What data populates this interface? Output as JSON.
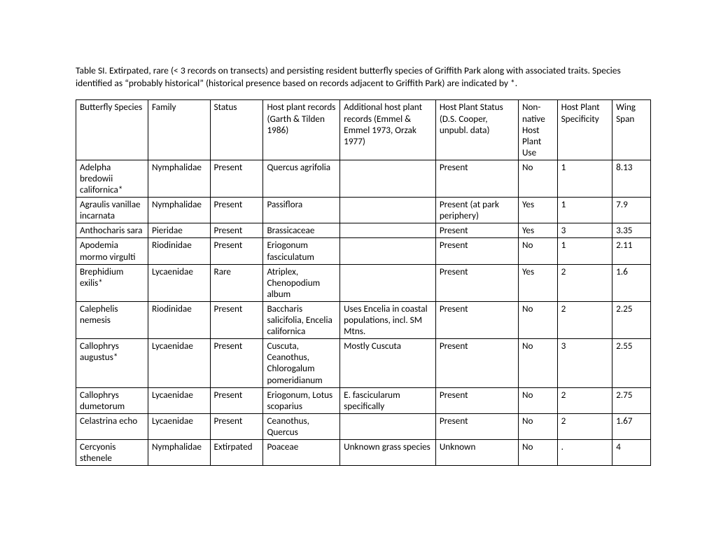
{
  "caption": "Table SI. Extirpated, rare (< 3 records on transects) and persisting resident butterfly species of Griffith Park along with associated traits. Species identified as “probably historical” (historical presence based on records adjacent to Griffith Park) are indicated by *.",
  "columns": [
    "Butterfly Species",
    "Family",
    "Status",
    "Host plant records (Garth & Tilden 1986)",
    "Additional host plant records (Emmel & Emmel 1973, Orzak 1977)",
    "Host Plant Status (D.S. Cooper, unpubl. data)",
    "Non-native Host Plant Use",
    "Host Plant Specificity",
    "Wing Span"
  ],
  "rows": [
    [
      "Adelpha bredowii californica*",
      "Nymphalidae",
      "Present",
      "Quercus agrifolia",
      "",
      "Present",
      "No",
      "1",
      "8.13"
    ],
    [
      "Agraulis vanillae incarnata",
      "Nymphalidae",
      "Present",
      "Passiflora",
      "",
      "Present (at park periphery)",
      "Yes",
      "1",
      "7.9"
    ],
    [
      "Anthocharis sara",
      "Pieridae",
      "Present",
      "Brassicaceae",
      "",
      "Present",
      "Yes",
      "3",
      "3.35"
    ],
    [
      "Apodemia mormo virgulti",
      "Riodinidae",
      "Present",
      "Eriogonum fasciculatum",
      "",
      "Present",
      "No",
      "1",
      "2.11"
    ],
    [
      "Brephidium exilis*",
      "Lycaenidae",
      "Rare",
      "Atriplex, Chenopodium album",
      "",
      "Present",
      "Yes",
      "2",
      "1.6"
    ],
    [
      "Calephelis nemesis",
      "Riodinidae",
      "Present",
      "Baccharis salicifolia, Encelia californica",
      "Uses Encelia in coastal populations, incl. SM Mtns.",
      "Present",
      "No",
      "2",
      "2.25"
    ],
    [
      "Callophrys augustus*",
      "Lycaenidae",
      "Present",
      "Cuscuta, Ceanothus, Chlorogalum pomeridianum",
      "Mostly Cuscuta",
      "Present",
      "No",
      "3",
      "2.55"
    ],
    [
      "Callophrys dumetorum",
      "Lycaenidae",
      "Present",
      "Eriogonum, Lotus scoparius",
      "E. fascicularum specifically",
      "Present",
      "No",
      "2",
      "2.75"
    ],
    [
      "Celastrina echo",
      "Lycaenidae",
      "Present",
      "Ceanothus, Quercus",
      "",
      "Present",
      "No",
      "2",
      "1.67"
    ],
    [
      "Cercyonis sthenele",
      "Nymphalidae",
      "Extirpated",
      "Poaceae",
      "Unknown grass species",
      "Unknown",
      "No",
      ".",
      "4"
    ]
  ]
}
